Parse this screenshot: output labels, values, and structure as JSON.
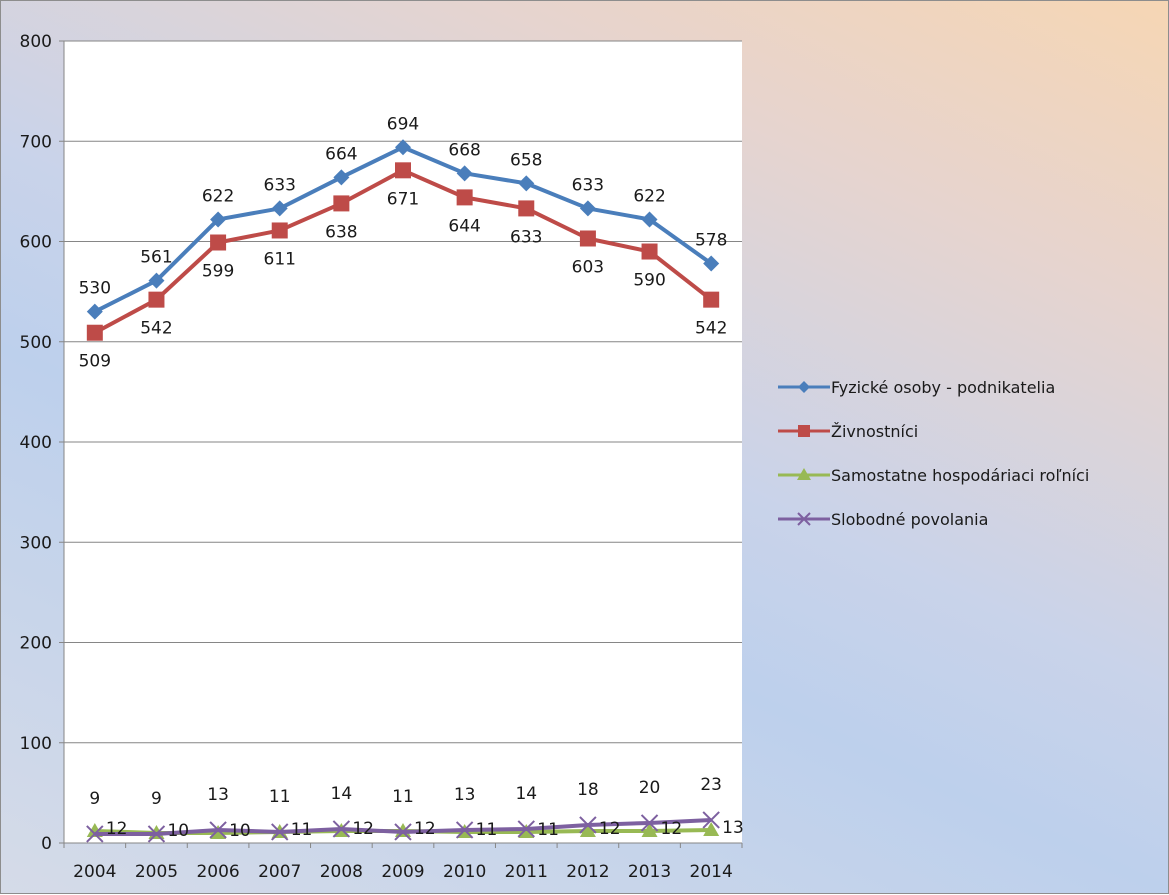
{
  "colors": {
    "series_1": "#4a7ebb",
    "series_2": "#be4b48",
    "series_3": "#98b954",
    "series_4": "#7d60a0"
  },
  "chart_data": {
    "type": "line",
    "categories": [
      "2004",
      "2005",
      "2006",
      "2007",
      "2008",
      "2009",
      "2010",
      "2011",
      "2012",
      "2013",
      "2014"
    ],
    "ylim": [
      0,
      800
    ],
    "yticks": [
      "0",
      "100",
      "200",
      "300",
      "400",
      "500",
      "600",
      "700",
      "800"
    ],
    "grid": true,
    "legend_position": "right",
    "series": [
      {
        "name": "Fyzické osoby - podnikatelia",
        "values": [
          530,
          561,
          622,
          633,
          664,
          694,
          668,
          658,
          633,
          622,
          578
        ],
        "marker": "diamond",
        "label_position": "above"
      },
      {
        "name": "Živnostníci",
        "values": [
          509,
          542,
          599,
          611,
          638,
          671,
          644,
          633,
          603,
          590,
          542
        ],
        "marker": "square",
        "label_position": "below"
      },
      {
        "name": "Samostatne hospodáriaci roľníci",
        "values": [
          12,
          10,
          10,
          11,
          12,
          12,
          11,
          11,
          12,
          12,
          13
        ],
        "marker": "triangle",
        "label_position": "right"
      },
      {
        "name": "Slobodné povolania",
        "values": [
          9,
          9,
          13,
          11,
          14,
          11,
          13,
          14,
          18,
          20,
          23
        ],
        "marker": "x",
        "label_position": "above"
      }
    ]
  }
}
